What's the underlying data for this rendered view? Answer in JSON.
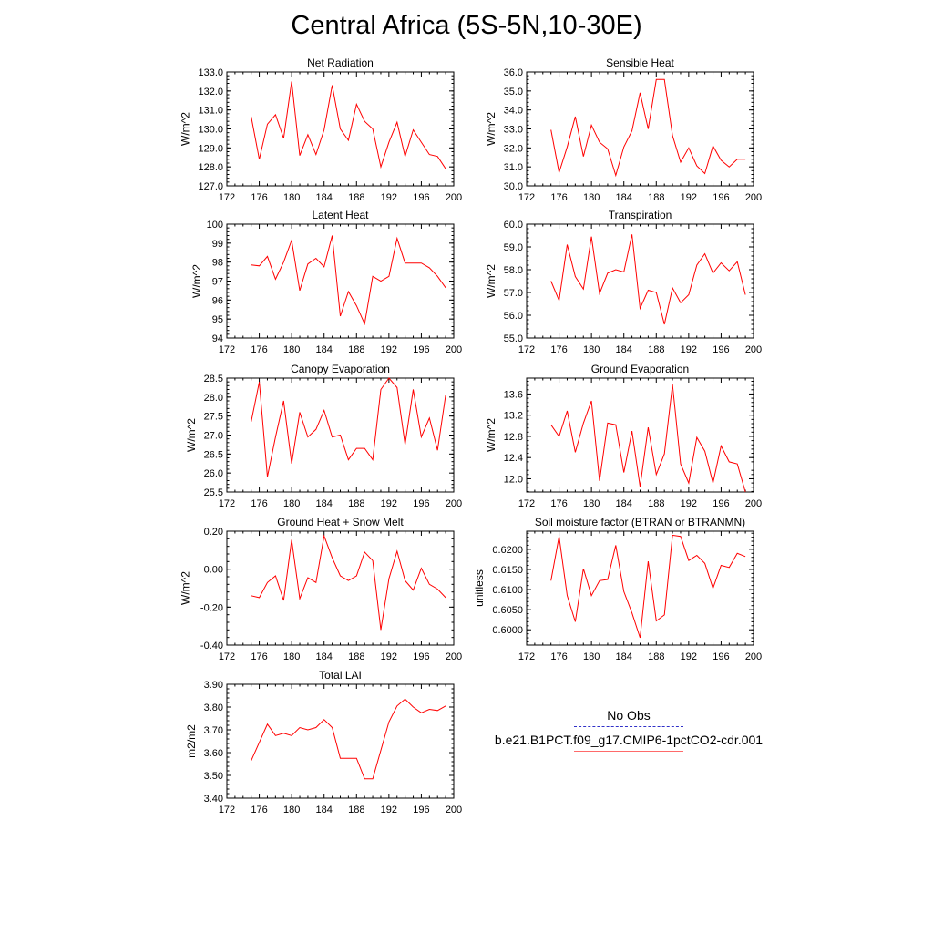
{
  "page": {
    "title": "Central Africa (5S-5N,10-30E)"
  },
  "legend": {
    "entries": [
      {
        "label": "No Obs",
        "color": "#3030c8",
        "style": "dashed"
      },
      {
        "label": "b.e21.B1PCT.f09_g17.CMIP6-1pctCO2-cdr.001",
        "color": "#ff6a6a",
        "style": "solid"
      }
    ]
  },
  "chart_data": [
    {
      "type": "line",
      "title": "Net Radiation",
      "xlabel": "",
      "ylabel": "W/m^2",
      "xlim": [
        172,
        200
      ],
      "ylim": [
        127.0,
        133.0
      ],
      "xticks": [
        172,
        176,
        180,
        184,
        188,
        192,
        196,
        200
      ],
      "yticks": [
        127.0,
        128.0,
        129.0,
        130.0,
        131.0,
        132.0,
        133.0
      ],
      "ydecimals": 1,
      "series": [
        {
          "color": "#ff0000",
          "x": [
            175,
            176,
            177,
            178,
            179,
            180,
            181,
            182,
            183,
            184,
            185,
            186,
            187,
            188,
            189,
            190,
            191,
            192,
            193,
            194,
            195,
            196,
            197,
            198,
            199
          ],
          "y": [
            130.65,
            128.4,
            130.25,
            130.75,
            129.5,
            132.5,
            128.6,
            129.7,
            128.65,
            129.95,
            132.3,
            130.0,
            129.4,
            131.3,
            130.4,
            130.0,
            128.0,
            129.3,
            130.35,
            128.55,
            129.95,
            129.3,
            128.65,
            128.55,
            127.9
          ]
        }
      ]
    },
    {
      "type": "line",
      "title": "Sensible Heat",
      "xlabel": "",
      "ylabel": "W/m^2",
      "xlim": [
        172,
        200
      ],
      "ylim": [
        30.0,
        36.0
      ],
      "xticks": [
        172,
        176,
        180,
        184,
        188,
        192,
        196,
        200
      ],
      "yticks": [
        30.0,
        31.0,
        32.0,
        33.0,
        34.0,
        35.0,
        36.0
      ],
      "ydecimals": 1,
      "series": [
        {
          "color": "#ff0000",
          "x": [
            175,
            176,
            177,
            178,
            179,
            180,
            181,
            182,
            183,
            184,
            185,
            186,
            187,
            188,
            189,
            190,
            191,
            192,
            193,
            194,
            195,
            196,
            197,
            198,
            199
          ],
          "y": [
            32.95,
            30.7,
            32.05,
            33.65,
            31.55,
            33.2,
            32.3,
            31.95,
            30.55,
            32.05,
            32.9,
            34.9,
            33.0,
            35.6,
            35.6,
            32.65,
            31.25,
            32.0,
            31.05,
            30.65,
            32.1,
            31.35,
            31.0,
            31.4,
            31.4
          ]
        }
      ]
    },
    {
      "type": "line",
      "title": "Latent Heat",
      "xlabel": "",
      "ylabel": "W/m^2",
      "xlim": [
        172,
        200
      ],
      "ylim": [
        94,
        100
      ],
      "xticks": [
        172,
        176,
        180,
        184,
        188,
        192,
        196,
        200
      ],
      "yticks": [
        94,
        95,
        96,
        97,
        98,
        99,
        100
      ],
      "ydecimals": 0,
      "series": [
        {
          "color": "#ff0000",
          "x": [
            175,
            176,
            177,
            178,
            179,
            180,
            181,
            182,
            183,
            184,
            185,
            186,
            187,
            188,
            189,
            190,
            191,
            192,
            193,
            194,
            195,
            196,
            197,
            198,
            199
          ],
          "y": [
            97.85,
            97.8,
            98.3,
            97.1,
            98.0,
            99.15,
            96.5,
            97.9,
            98.2,
            97.75,
            99.4,
            95.15,
            96.45,
            95.7,
            94.75,
            97.25,
            97.0,
            97.25,
            99.25,
            97.95,
            97.95,
            97.95,
            97.7,
            97.25,
            96.65
          ]
        }
      ]
    },
    {
      "type": "line",
      "title": "Transpiration",
      "xlabel": "",
      "ylabel": "W/m^2",
      "xlim": [
        172,
        200
      ],
      "ylim": [
        55.0,
        60.0
      ],
      "xticks": [
        172,
        176,
        180,
        184,
        188,
        192,
        196,
        200
      ],
      "yticks": [
        55.0,
        56.0,
        57.0,
        58.0,
        59.0,
        60.0
      ],
      "ydecimals": 1,
      "series": [
        {
          "color": "#ff0000",
          "x": [
            175,
            176,
            177,
            178,
            179,
            180,
            181,
            182,
            183,
            184,
            185,
            186,
            187,
            188,
            189,
            190,
            191,
            192,
            193,
            194,
            195,
            196,
            197,
            198,
            199
          ],
          "y": [
            57.5,
            56.65,
            59.1,
            57.7,
            57.15,
            59.45,
            56.95,
            57.85,
            58.0,
            57.9,
            59.55,
            56.3,
            57.1,
            57.0,
            55.6,
            57.2,
            56.55,
            56.9,
            58.2,
            58.7,
            57.85,
            58.3,
            57.95,
            58.35,
            56.9
          ]
        }
      ]
    },
    {
      "type": "line",
      "title": "Canopy Evaporation",
      "xlabel": "",
      "ylabel": "W/m^2",
      "xlim": [
        172,
        200
      ],
      "ylim": [
        25.5,
        28.5
      ],
      "xticks": [
        172,
        176,
        180,
        184,
        188,
        192,
        196,
        200
      ],
      "yticks": [
        25.5,
        26.0,
        26.5,
        27.0,
        27.5,
        28.0,
        28.5
      ],
      "ydecimals": 1,
      "series": [
        {
          "color": "#ff0000",
          "x": [
            175,
            176,
            177,
            178,
            179,
            180,
            181,
            182,
            183,
            184,
            185,
            186,
            187,
            188,
            189,
            190,
            191,
            192,
            193,
            194,
            195,
            196,
            197,
            198,
            199
          ],
          "y": [
            27.35,
            28.4,
            25.9,
            26.95,
            27.9,
            26.25,
            27.6,
            26.95,
            27.15,
            27.65,
            26.95,
            27.0,
            26.35,
            26.65,
            26.65,
            26.35,
            28.2,
            28.5,
            28.25,
            26.75,
            28.2,
            26.95,
            27.45,
            26.6,
            28.05
          ]
        }
      ]
    },
    {
      "type": "line",
      "title": "Ground Evaporation",
      "xlabel": "",
      "ylabel": "W/m^2",
      "xlim": [
        172,
        200
      ],
      "ylim": [
        11.75,
        13.9
      ],
      "xticks": [
        172,
        176,
        180,
        184,
        188,
        192,
        196,
        200
      ],
      "yticks": [
        12.0,
        12.4,
        12.8,
        13.2,
        13.6
      ],
      "ydecimals": 1,
      "series": [
        {
          "color": "#ff0000",
          "x": [
            175,
            176,
            177,
            178,
            179,
            180,
            181,
            182,
            183,
            184,
            185,
            186,
            187,
            188,
            189,
            190,
            191,
            192,
            193,
            194,
            195,
            196,
            197,
            198,
            199
          ],
          "y": [
            13.02,
            12.8,
            13.28,
            12.5,
            13.05,
            13.47,
            11.96,
            13.05,
            13.02,
            12.12,
            12.9,
            11.85,
            12.97,
            12.08,
            12.47,
            13.78,
            12.28,
            11.92,
            12.78,
            12.52,
            11.92,
            12.62,
            12.32,
            12.28,
            11.75
          ]
        }
      ]
    },
    {
      "type": "line",
      "title": "Ground Heat + Snow Melt",
      "xlabel": "",
      "ylabel": "W/m^2",
      "xlim": [
        172,
        200
      ],
      "ylim": [
        -0.4,
        0.2
      ],
      "xticks": [
        172,
        176,
        180,
        184,
        188,
        192,
        196,
        200
      ],
      "yticks": [
        -0.4,
        -0.2,
        0.0,
        0.2
      ],
      "ydecimals": 2,
      "series": [
        {
          "color": "#ff0000",
          "x": [
            175,
            176,
            177,
            178,
            179,
            180,
            181,
            182,
            183,
            184,
            185,
            186,
            187,
            188,
            189,
            190,
            191,
            192,
            193,
            194,
            195,
            196,
            197,
            198,
            199
          ],
          "y": [
            -0.14,
            -0.15,
            -0.07,
            -0.035,
            -0.165,
            0.155,
            -0.155,
            -0.045,
            -0.07,
            0.175,
            0.06,
            -0.035,
            -0.06,
            -0.035,
            0.09,
            0.045,
            -0.32,
            -0.05,
            0.095,
            -0.06,
            -0.11,
            0.005,
            -0.08,
            -0.105,
            -0.15
          ]
        }
      ]
    },
    {
      "type": "line",
      "title": "Soil moisture factor (BTRAN or BTRANMN)",
      "xlabel": "",
      "ylabel": "unitless",
      "xlim": [
        172,
        200
      ],
      "ylim": [
        0.5962,
        0.6245
      ],
      "xticks": [
        172,
        176,
        180,
        184,
        188,
        192,
        196,
        200
      ],
      "yticks": [
        0.6,
        0.605,
        0.61,
        0.615,
        0.62
      ],
      "ydecimals": 4,
      "series": [
        {
          "color": "#ff0000",
          "x": [
            175,
            176,
            177,
            178,
            179,
            180,
            181,
            182,
            183,
            184,
            185,
            186,
            187,
            188,
            189,
            190,
            191,
            192,
            193,
            194,
            195,
            196,
            197,
            198,
            199
          ],
          "y": [
            0.6122,
            0.6232,
            0.6085,
            0.602,
            0.6152,
            0.6085,
            0.6122,
            0.6125,
            0.621,
            0.6095,
            0.6042,
            0.598,
            0.617,
            0.6022,
            0.6037,
            0.6235,
            0.6232,
            0.6172,
            0.6185,
            0.6165,
            0.6103,
            0.616,
            0.6155,
            0.619,
            0.6182
          ]
        }
      ]
    },
    {
      "type": "line",
      "title": "Total LAI",
      "xlabel": "",
      "ylabel": "m2/m2",
      "xlim": [
        172,
        200
      ],
      "ylim": [
        3.4,
        3.9
      ],
      "xticks": [
        172,
        176,
        180,
        184,
        188,
        192,
        196,
        200
      ],
      "yticks": [
        3.4,
        3.5,
        3.6,
        3.7,
        3.8,
        3.9
      ],
      "ydecimals": 2,
      "series": [
        {
          "color": "#ff0000",
          "x": [
            175,
            176,
            177,
            178,
            179,
            180,
            181,
            182,
            183,
            184,
            185,
            186,
            187,
            188,
            189,
            190,
            191,
            192,
            193,
            194,
            195,
            196,
            197,
            198,
            199
          ],
          "y": [
            3.565,
            3.645,
            3.725,
            3.675,
            3.685,
            3.675,
            3.71,
            3.7,
            3.71,
            3.745,
            3.71,
            3.575,
            3.575,
            3.575,
            3.485,
            3.485,
            3.61,
            3.735,
            3.805,
            3.835,
            3.8,
            3.775,
            3.79,
            3.785,
            3.805
          ]
        }
      ]
    }
  ]
}
